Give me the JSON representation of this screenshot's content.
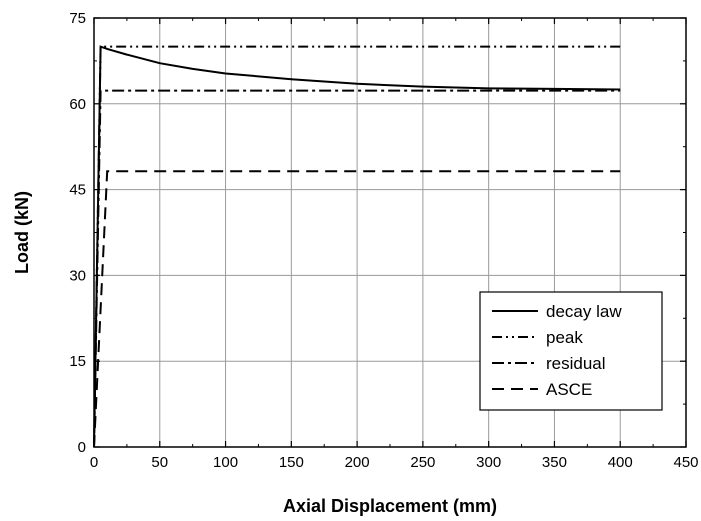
{
  "chart_data": {
    "type": "line",
    "title": "",
    "xlabel": "Axial Displacement (mm)",
    "ylabel": "Load (kN)",
    "xlim": [
      0,
      450
    ],
    "ylim": [
      0,
      75
    ],
    "xticks": [
      0,
      50,
      100,
      150,
      200,
      250,
      300,
      350,
      400,
      450
    ],
    "yticks": [
      0,
      15,
      30,
      45,
      60,
      75
    ],
    "grid": true,
    "legend_position": "bottom-right",
    "series": [
      {
        "name": "decay law",
        "style": "solid",
        "x": [
          0,
          5,
          10,
          25,
          50,
          75,
          100,
          150,
          200,
          250,
          300,
          350,
          400
        ],
        "y": [
          0,
          70,
          69.6,
          68.6,
          67.1,
          66.1,
          65.3,
          64.3,
          63.5,
          63.0,
          62.7,
          62.6,
          62.5
        ]
      },
      {
        "name": "peak",
        "style": "dash-dot-dot",
        "x": [
          0,
          5,
          400
        ],
        "y": [
          0,
          70,
          70
        ]
      },
      {
        "name": "residual",
        "style": "dash-dot",
        "x": [
          0,
          5,
          400
        ],
        "y": [
          0,
          62.3,
          62.3
        ]
      },
      {
        "name": "ASCE",
        "style": "dash",
        "x": [
          0,
          10,
          400
        ],
        "y": [
          0,
          48.2,
          48.2
        ]
      }
    ]
  }
}
